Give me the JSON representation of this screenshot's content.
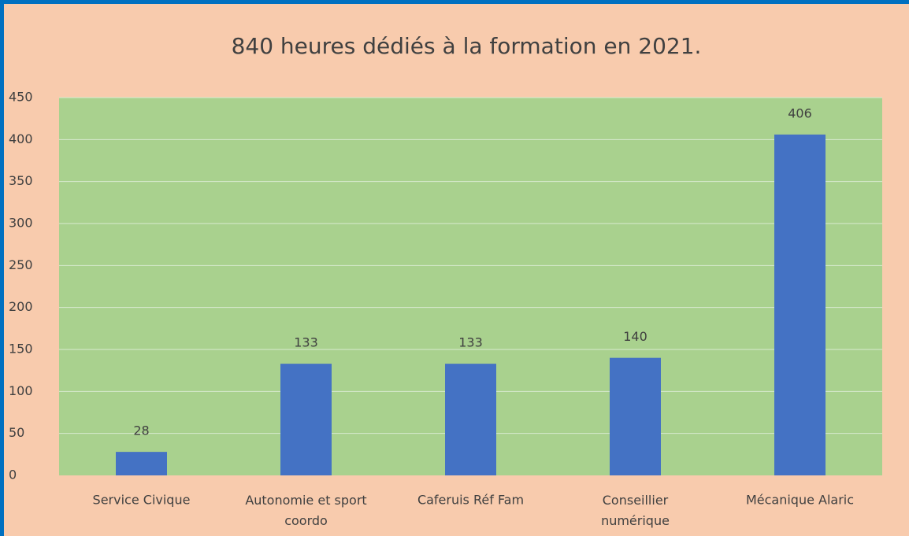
{
  "chart_data": {
    "type": "bar",
    "title": "840 heures dédiés à la formation en 2021.",
    "categories": [
      "Service Civique",
      "Autonomie et sport coordo",
      "Caferuis Réf Fam",
      "Conseillier numérique",
      "Mécanique Alaric"
    ],
    "values": [
      28,
      133,
      133,
      140,
      406
    ],
    "color": "#4472c4",
    "ylim": [
      0,
      450
    ],
    "yticks": [
      0,
      50,
      100,
      150,
      200,
      250,
      300,
      350,
      400,
      450
    ],
    "grid": true
  }
}
